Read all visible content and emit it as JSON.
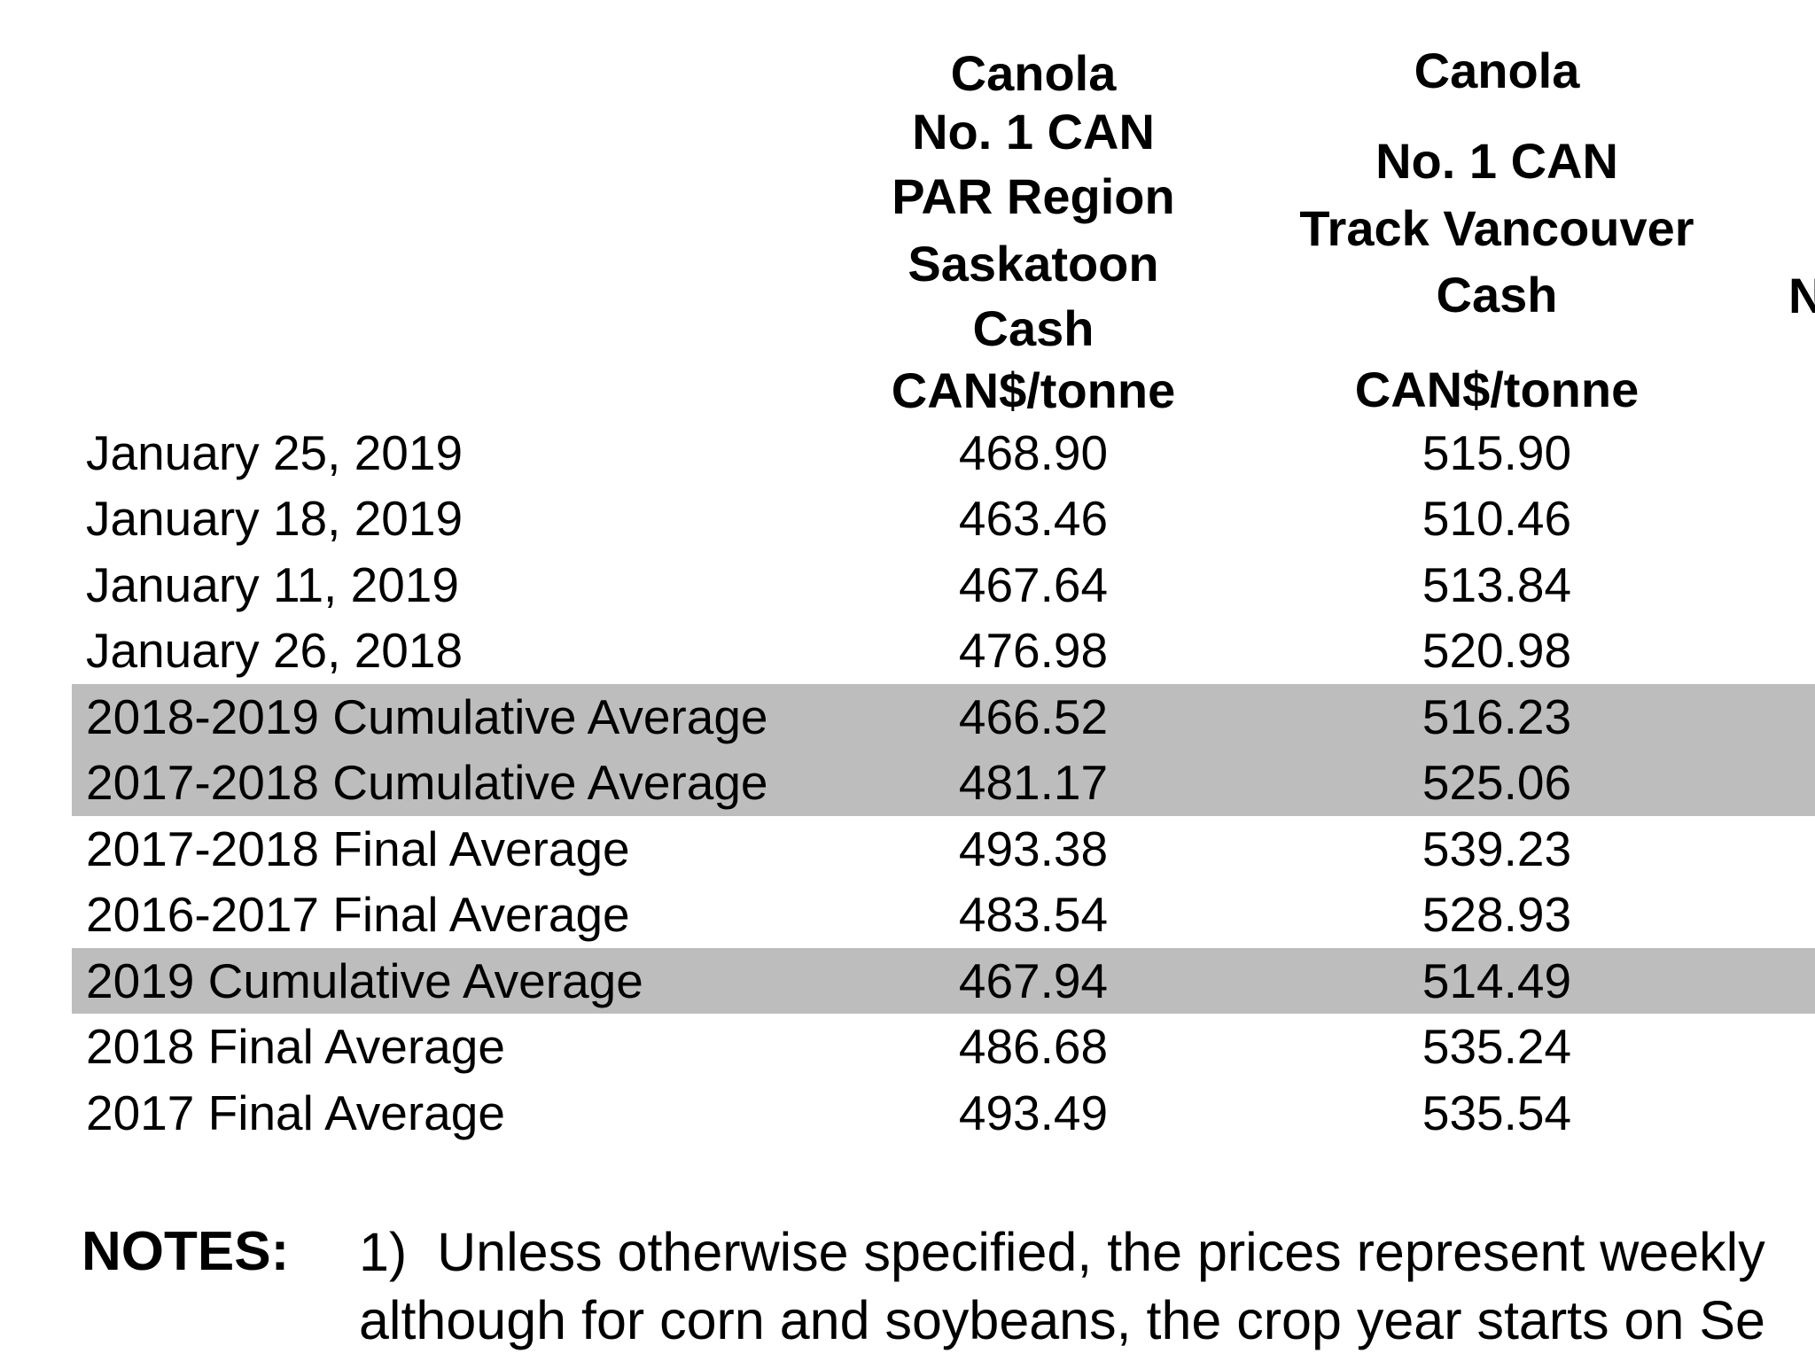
{
  "colors": {
    "highlight_row": "#bdbdbd",
    "text": "#000000",
    "background": "#ffffff"
  },
  "table": {
    "columns": [
      {
        "name": "canola-par-region-saskatoon",
        "header_lines": [
          "Canola",
          "No. 1 CAN",
          "PAR Region",
          "Saskatoon",
          "Cash",
          "CAN$/tonne"
        ]
      },
      {
        "name": "canola-track-vancouver",
        "header_lines": [
          "Canola",
          "No. 1 CAN",
          "Track Vancouver",
          "Cash",
          "CAN$/tonne"
        ]
      },
      {
        "name": "truncated-right-column",
        "header_lines": [
          "N"
        ]
      }
    ],
    "rows": [
      {
        "label": "January 25, 2019",
        "saskatoon": "468.90",
        "vancouver": "515.90",
        "highlight": false
      },
      {
        "label": "January 18, 2019",
        "saskatoon": "463.46",
        "vancouver": "510.46",
        "highlight": false
      },
      {
        "label": "January 11, 2019",
        "saskatoon": "467.64",
        "vancouver": "513.84",
        "highlight": false
      },
      {
        "label": "January 26, 2018",
        "saskatoon": "476.98",
        "vancouver": "520.98",
        "highlight": false
      },
      {
        "label": "2018-2019 Cumulative Average",
        "saskatoon": "466.52",
        "vancouver": "516.23",
        "highlight": true
      },
      {
        "label": "2017-2018 Cumulative Average",
        "saskatoon": "481.17",
        "vancouver": "525.06",
        "highlight": true
      },
      {
        "label": "2017-2018 Final Average",
        "saskatoon": "493.38",
        "vancouver": "539.23",
        "highlight": false
      },
      {
        "label": "2016-2017 Final Average",
        "saskatoon": "483.54",
        "vancouver": "528.93",
        "highlight": false
      },
      {
        "label": "2019 Cumulative Average",
        "saskatoon": "467.94",
        "vancouver": "514.49",
        "highlight": true
      },
      {
        "label": "2018 Final Average",
        "saskatoon": "486.68",
        "vancouver": "535.24",
        "highlight": false
      },
      {
        "label": "2017 Final Average",
        "saskatoon": "493.49",
        "vancouver": "535.54",
        "highlight": false
      }
    ]
  },
  "notes": {
    "label": "NOTES:",
    "lines": [
      "1)  Unless otherwise specified, the prices represent weekly",
      "although for corn and soybeans, the crop year starts on Se"
    ]
  }
}
